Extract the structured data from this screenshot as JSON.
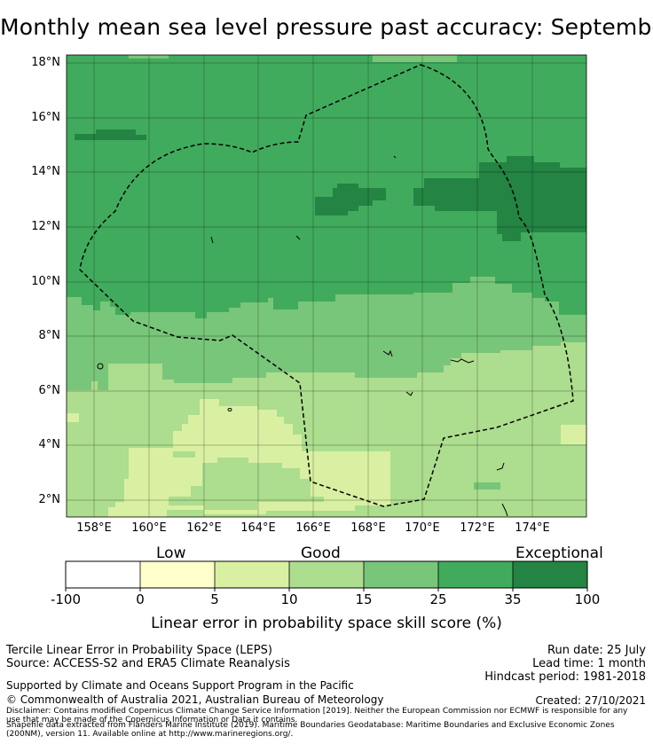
{
  "title": "Monthly mean sea level pressure past accuracy: September",
  "map": {
    "lat_labels": [
      "18°N",
      "16°N",
      "14°N",
      "12°N",
      "10°N",
      "8°N",
      "6°N",
      "4°N",
      "2°N"
    ],
    "lon_labels": [
      "158°E",
      "160°E",
      "162°E",
      "164°E",
      "166°E",
      "168°E",
      "170°E",
      "172°E",
      "174°E"
    ],
    "layer": "Linear error in probability space skill score (%)",
    "boundary_style": "dashed black line (maritime boundary)",
    "colors": {
      "lt0": "#ffffff",
      "b0_5": "#ffffcc",
      "b5_10": "#d9f0a3",
      "b10_15": "#addd8e",
      "b15_25": "#78c679",
      "b25_35": "#41ab5d",
      "b35_100": "#238443"
    }
  },
  "colorbar": {
    "category_labels": [
      "Low",
      "Good",
      "Exceptional"
    ],
    "tick_labels": [
      "-100",
      "0",
      "5",
      "10",
      "15",
      "25",
      "35",
      "100"
    ],
    "title": "Linear error in probability space skill score (%)"
  },
  "footer": {
    "left1": "Tercile Linear Error in Probability Space (LEPS)",
    "left2": "Source: ACCESS-S2 and ERA5 Climate Reanalysis",
    "right1": "Run date: 25 July",
    "right2": "Lead time: 1 month",
    "right3": "Hindcast period: 1981-2018",
    "support": "Supported by Climate and Oceans Support Program in the Pacific",
    "copyright": "© Commonwealth of Australia 2021, Australian Bureau of Meteorology",
    "created": "Created: 27/10/2021",
    "disclaimer1": "Disclaimer: Contains modified Copernicus Climate Change Service Information [2019]. Neither the European Commission nor ECMWF is responsible for any",
    "disclaimer2": "use that may be made of the Copernicus Information or Data it contains.",
    "shapefile1": "Shapefile data extracted from Flanders Marine Institute (2019). Maritime Boundaries Geodatabase: Maritime Boundaries and Exclusive Economic Zones",
    "shapefile2": "(200NM), version 11. Available online at http://www.marineregions.org/."
  }
}
